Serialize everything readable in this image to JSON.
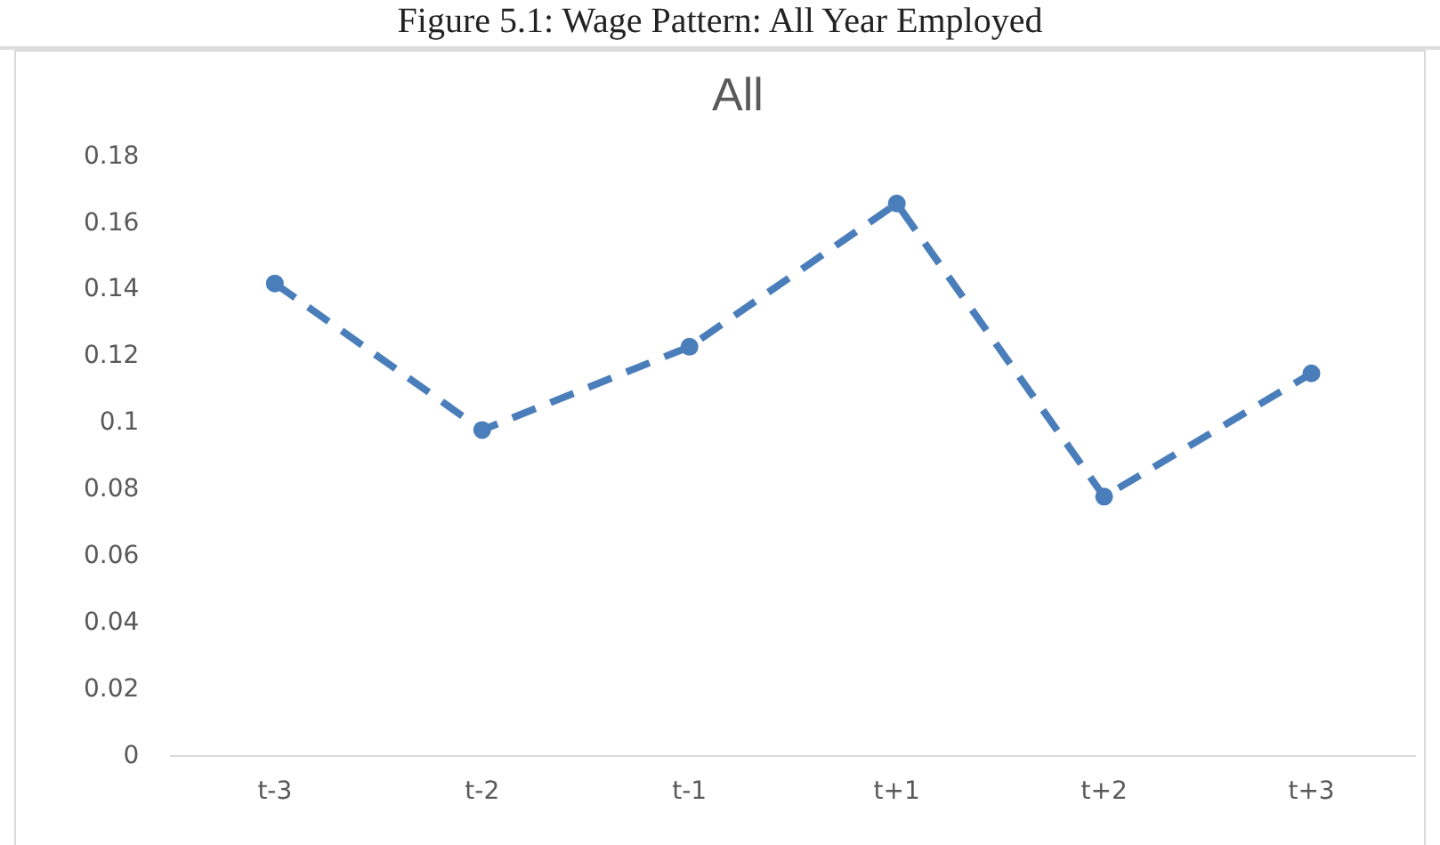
{
  "chart_data": {
    "type": "line",
    "title": "All",
    "annotations": [
      "Figure 5.1: Wage Pattern: All Year Employed"
    ],
    "categories": [
      "t-3",
      "t-2",
      "t-1",
      "t+1",
      "t+2",
      "t+3"
    ],
    "series": [
      {
        "color": "#4a7ebb",
        "values": [
          0.142,
          0.098,
          0.123,
          0.166,
          0.078,
          0.115
        ]
      }
    ],
    "ylim": [
      0,
      0.18
    ],
    "yticks": [
      0,
      0.02,
      0.04,
      0.06,
      0.08,
      0.1,
      0.12,
      0.14,
      0.16,
      0.18
    ],
    "grid": false,
    "legend": false,
    "marker": "circle",
    "line_style": "dashed"
  }
}
